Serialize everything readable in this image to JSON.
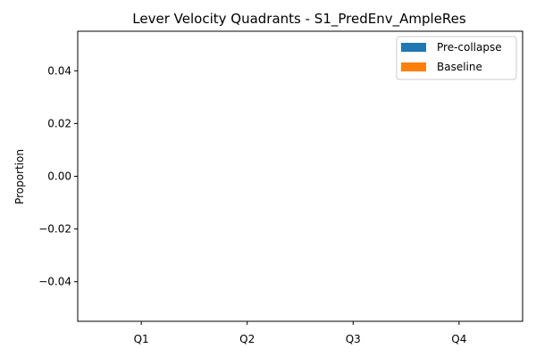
{
  "chart_data": {
    "type": "bar",
    "title": "Lever Velocity Quadrants - S1_PredEnv_AmpleRes",
    "xlabel": "",
    "ylabel": "Proportion",
    "categories": [
      "Q1",
      "Q2",
      "Q3",
      "Q4"
    ],
    "series": [
      {
        "name": "Pre-collapse",
        "color": "#1f77b4",
        "values": [
          0,
          0,
          0,
          0
        ]
      },
      {
        "name": "Baseline",
        "color": "#ff7f0e",
        "values": [
          0,
          0,
          0,
          0
        ]
      }
    ],
    "ylim": [
      -0.055,
      0.055
    ],
    "yticks": [
      -0.04,
      -0.02,
      0.0,
      0.02,
      0.04
    ],
    "ytick_labels": [
      "−0.04",
      "−0.02",
      "0.00",
      "0.02",
      "0.04"
    ],
    "grid": false,
    "legend_position": "top-right"
  }
}
